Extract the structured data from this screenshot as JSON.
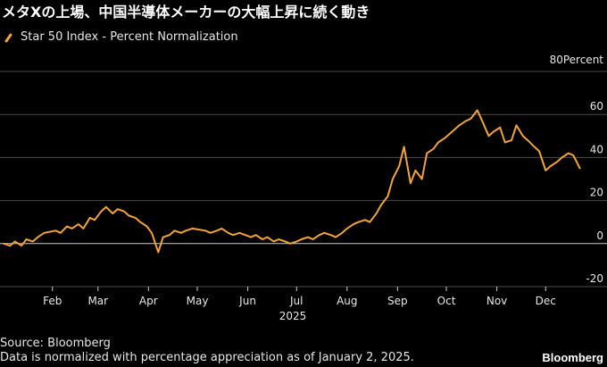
{
  "title": "メタXの上場、中国半導体メーカーの大幅上昇に続く動き",
  "legend": {
    "label": "Star 50 Index - Percent Normalization"
  },
  "colors": {
    "line": "#f2a33a",
    "grid": "#4a4a4a",
    "zero": "#cccccc",
    "text": "#e6e6e6"
  },
  "footer": {
    "source": "Source: Bloomberg",
    "note": "Data is normalized with percentage appreciation as of January 2, 2025."
  },
  "brand": "Bloomberg",
  "chart_data": {
    "type": "line",
    "year_label": "2025",
    "y_unit_label": "80Percent",
    "ylim": [
      -20,
      80
    ],
    "yticks": [
      -20,
      0,
      20,
      40,
      60
    ],
    "ytick_labels": [
      "-20",
      "0",
      "20",
      "40",
      "60"
    ],
    "xlim": [
      "2025-01-02",
      "2025-12-31"
    ],
    "xticks": [
      "2025-02-01",
      "2025-03-01",
      "2025-04-01",
      "2025-05-01",
      "2025-06-01",
      "2025-07-01",
      "2025-08-01",
      "2025-09-01",
      "2025-10-01",
      "2025-11-01",
      "2025-12-01"
    ],
    "xtick_labels": [
      "Feb",
      "Mar",
      "Apr",
      "May",
      "Jun",
      "Jul",
      "Aug",
      "Sep",
      "Oct",
      "Nov",
      "Dec"
    ],
    "grid": true,
    "legend_position": "top-left",
    "series": [
      {
        "name": "Star 50 Index - Percent Normalization",
        "x": [
          "2025-01-02",
          "2025-01-06",
          "2025-01-09",
          "2025-01-13",
          "2025-01-16",
          "2025-01-20",
          "2025-01-23",
          "2025-01-27",
          "2025-02-03",
          "2025-02-06",
          "2025-02-10",
          "2025-02-13",
          "2025-02-17",
          "2025-02-20",
          "2025-02-24",
          "2025-02-27",
          "2025-03-03",
          "2025-03-06",
          "2025-03-10",
          "2025-03-13",
          "2025-03-17",
          "2025-03-20",
          "2025-03-24",
          "2025-03-27",
          "2025-03-31",
          "2025-04-03",
          "2025-04-07",
          "2025-04-10",
          "2025-04-14",
          "2025-04-17",
          "2025-04-21",
          "2025-04-24",
          "2025-04-28",
          "2025-05-06",
          "2025-05-09",
          "2025-05-13",
          "2025-05-16",
          "2025-05-20",
          "2025-05-23",
          "2025-05-27",
          "2025-06-03",
          "2025-06-06",
          "2025-06-10",
          "2025-06-13",
          "2025-06-17",
          "2025-06-20",
          "2025-06-24",
          "2025-06-27",
          "2025-07-01",
          "2025-07-04",
          "2025-07-08",
          "2025-07-11",
          "2025-07-15",
          "2025-07-18",
          "2025-07-22",
          "2025-07-25",
          "2025-07-29",
          "2025-08-01",
          "2025-08-05",
          "2025-08-08",
          "2025-08-12",
          "2025-08-15",
          "2025-08-19",
          "2025-08-22",
          "2025-08-26",
          "2025-08-29",
          "2025-09-02",
          "2025-09-05",
          "2025-09-09",
          "2025-09-12",
          "2025-09-16",
          "2025-09-19",
          "2025-09-23",
          "2025-09-26",
          "2025-09-30",
          "2025-10-09",
          "2025-10-13",
          "2025-10-16",
          "2025-10-20",
          "2025-10-23",
          "2025-10-27",
          "2025-10-30",
          "2025-11-03",
          "2025-11-06",
          "2025-11-10",
          "2025-11-13",
          "2025-11-17",
          "2025-11-20",
          "2025-11-24",
          "2025-11-27",
          "2025-12-01",
          "2025-12-04",
          "2025-12-08",
          "2025-12-11",
          "2025-12-15",
          "2025-12-18",
          "2025-12-22"
        ],
        "y": [
          0,
          -1,
          1,
          -1,
          2,
          1,
          3,
          5,
          6,
          5,
          8,
          7,
          9,
          7,
          12,
          11,
          15,
          17,
          14,
          16,
          15,
          13,
          12,
          10,
          8,
          5,
          -4,
          3,
          4,
          6,
          5,
          6,
          7,
          6,
          5,
          6,
          7,
          5,
          4,
          5,
          3,
          4,
          2,
          3,
          1,
          2,
          1,
          0,
          1,
          2,
          3,
          2,
          4,
          5,
          4,
          3,
          5,
          7,
          9,
          10,
          11,
          10,
          14,
          18,
          22,
          30,
          36,
          45,
          28,
          34,
          30,
          42,
          44,
          47,
          49,
          55,
          57,
          58,
          62,
          57,
          50,
          52,
          54,
          47,
          48,
          55,
          50,
          48,
          45,
          43,
          34,
          36,
          38,
          40,
          42,
          41,
          35
        ]
      }
    ]
  }
}
